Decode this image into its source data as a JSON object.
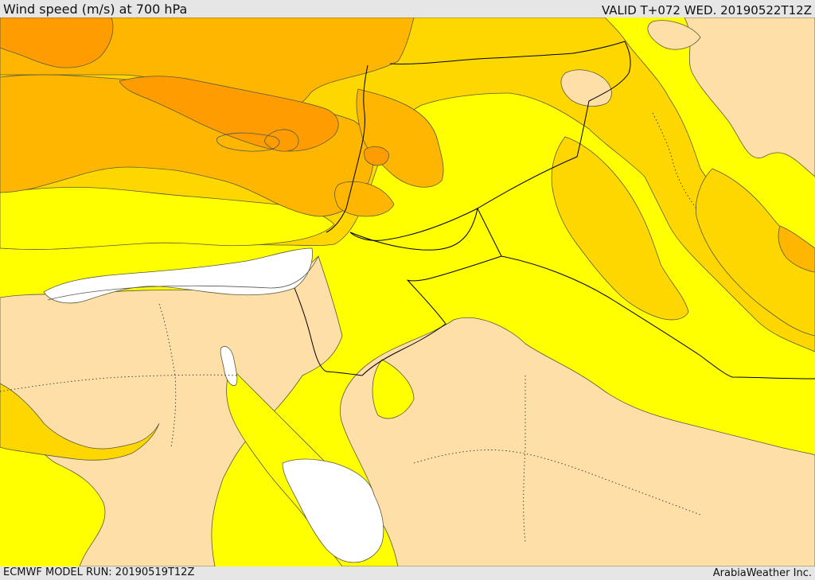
{
  "header": {
    "title": "Wind speed (m/s) at 700 hPa",
    "valid": "VALID T+072 WED. 20190522T12Z"
  },
  "footer": {
    "model_run": "ECMWF MODEL RUN: 20190519T12Z",
    "credit": "ArabiaWeather Inc."
  },
  "colors": {
    "band_lowest": "#ffffff",
    "band_low": "#ffdfa8",
    "band_mid": "#ffff00",
    "band_midhigh": "#ffd700",
    "band_high": "#ffb600",
    "band_highest": "#ff9d00"
  }
}
